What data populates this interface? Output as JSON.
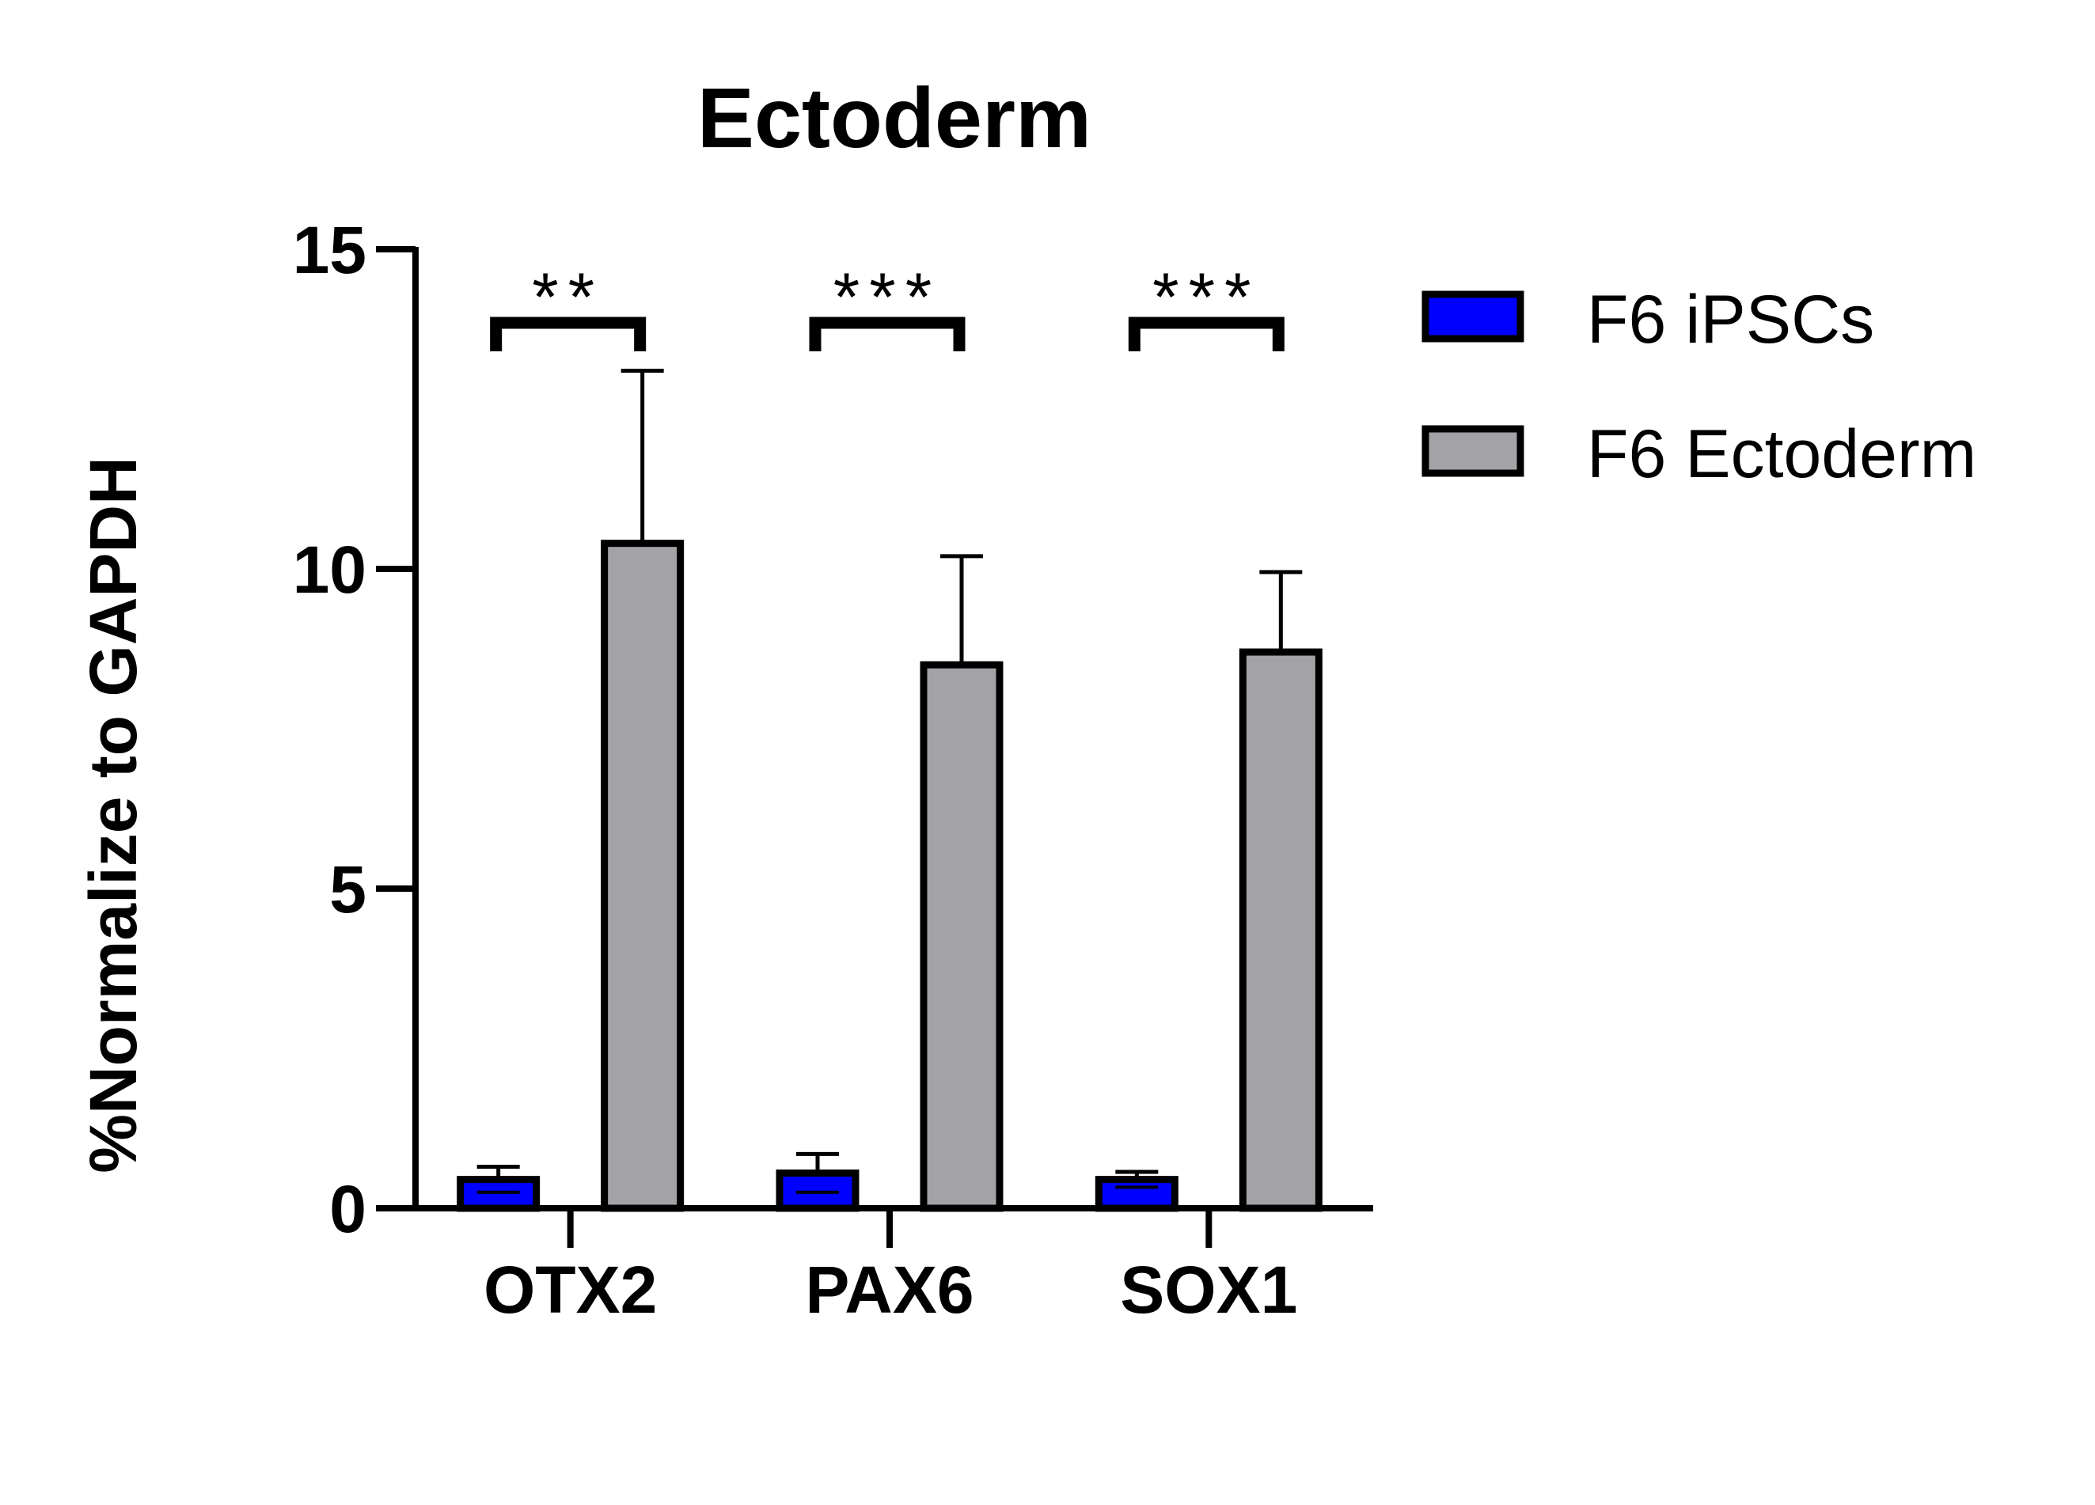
{
  "chart_data": {
    "type": "bar",
    "title": "Ectoderm",
    "ylabel": "%Normalize to GAPDH",
    "xlabel": "",
    "ylim": [
      0,
      15
    ],
    "yticks": [
      0,
      5,
      10,
      15
    ],
    "categories": [
      "OTX2",
      "PAX6",
      "SOX1"
    ],
    "series": [
      {
        "name": "F6 iPSCs",
        "color": "#0000ff",
        "values": [
          0.45,
          0.55,
          0.45
        ],
        "errors": [
          0.2,
          0.3,
          0.12
        ]
      },
      {
        "name": "F6 Ectoderm",
        "color": "#a3a3a7",
        "values": [
          10.4,
          8.5,
          8.7
        ],
        "errors": [
          2.7,
          1.7,
          1.25
        ]
      }
    ],
    "significance": [
      "**",
      "***",
      "***"
    ],
    "legend_position": "right",
    "grid": false
  }
}
